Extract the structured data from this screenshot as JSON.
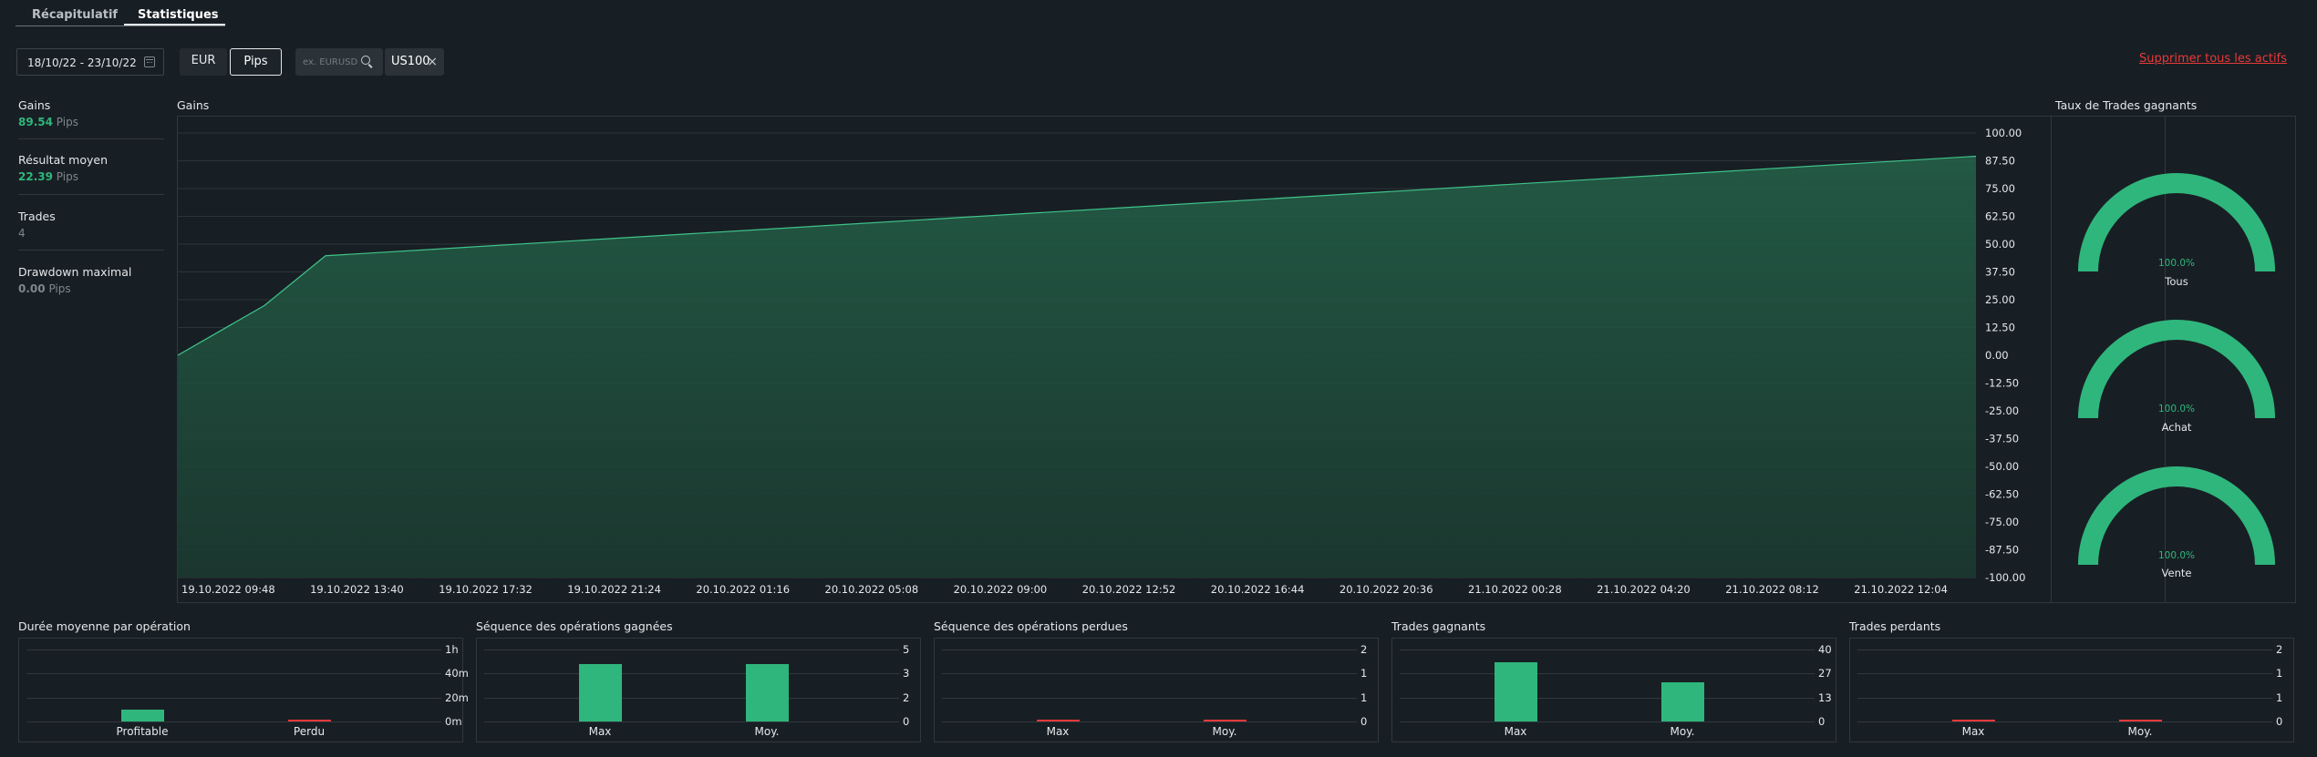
{
  "tabs": [
    {
      "label": "Récapitulatif",
      "active": false
    },
    {
      "label": "Statistiques",
      "active": true
    }
  ],
  "filters": {
    "date_range": "18/10/22 - 23/10/22",
    "currency_option": "EUR",
    "unit_option": "Pips",
    "active_unit": "Pips",
    "search_placeholder": "ex. EURUSD",
    "selected_asset": "US100",
    "delete_all_label": "Supprimer tous les actifs"
  },
  "stats": [
    {
      "label": "Gains",
      "value": "89.54",
      "unit": "Pips",
      "highlight": true
    },
    {
      "label": "Résultat moyen",
      "value": "22.39",
      "unit": "Pips",
      "highlight": true
    },
    {
      "label": "Trades",
      "value": "4",
      "unit": "",
      "highlight": false
    },
    {
      "label": "Drawdown maximal",
      "value": "0.00",
      "unit": "Pips",
      "highlight": false
    }
  ],
  "colors": {
    "accent_green": "#2fb67c",
    "danger_red": "#e8393a",
    "background": "#181f24",
    "panel_border": "#2f383e"
  },
  "chart_data": [
    {
      "type": "area",
      "title": "Gains",
      "x": [
        "19.10.2022 09:48",
        "19.10.2022 11:46",
        "19.10.2022 13:40",
        "21.10.2022 14:00"
      ],
      "series": [
        {
          "values": [
            0.0,
            22.39,
            44.77,
            89.54
          ]
        }
      ],
      "x_tick_labels": [
        "19.10.2022 09:48",
        "19.10.2022 13:40",
        "19.10.2022 17:32",
        "19.10.2022 21:24",
        "20.10.2022 01:16",
        "20.10.2022 05:08",
        "20.10.2022 09:00",
        "20.10.2022 12:52",
        "20.10.2022 16:44",
        "20.10.2022 20:36",
        "21.10.2022 00:28",
        "21.10.2022 04:20",
        "21.10.2022 08:12",
        "21.10.2022 12:04"
      ],
      "y_tick_labels": [
        "100.00",
        "87.50",
        "75.00",
        "62.50",
        "50.00",
        "37.50",
        "25.00",
        "12.50",
        "0.00",
        "-12.50",
        "-25.00",
        "-37.50",
        "-50.00",
        "-62.50",
        "-75.00",
        "-87.50",
        "-100.00"
      ],
      "ylim": [
        -100,
        100
      ],
      "grid": true
    },
    {
      "type": "pie",
      "title": "Taux de Trades gagnants",
      "categories": [
        "Tous",
        "Achat",
        "Vente"
      ],
      "values": [
        100.0,
        100.0,
        100.0
      ],
      "value_labels": [
        "100.0%",
        "100.0%",
        "100.0%"
      ]
    },
    {
      "type": "bar",
      "title": "Durée moyenne par opération",
      "categories": [
        "Profitable",
        "Perdu"
      ],
      "values": [
        10,
        0
      ],
      "value_unit": "minutes",
      "y_tick_labels": [
        "1h",
        "40m",
        "20m",
        "0m"
      ],
      "ylim": [
        0,
        60
      ]
    },
    {
      "type": "bar",
      "title": "Séquence des opérations gagnées",
      "categories": [
        "Max",
        "Moy."
      ],
      "values": [
        4,
        4
      ],
      "y_tick_labels": [
        "5",
        "3",
        "2",
        "0"
      ],
      "ylim": [
        0,
        5
      ]
    },
    {
      "type": "bar",
      "title": "Séquence des opérations perdues",
      "categories": [
        "Max",
        "Moy."
      ],
      "values": [
        0,
        0
      ],
      "y_tick_labels": [
        "2",
        "1",
        "1",
        "0"
      ],
      "ylim": [
        0,
        2
      ]
    },
    {
      "type": "bar",
      "title": "Trades gagnants",
      "categories": [
        "Max",
        "Moy."
      ],
      "values": [
        33,
        22
      ],
      "y_tick_labels": [
        "40",
        "27",
        "13",
        "0"
      ],
      "ylim": [
        0,
        40
      ]
    },
    {
      "type": "bar",
      "title": "Trades perdants",
      "categories": [
        "Max",
        "Moy."
      ],
      "values": [
        0,
        0
      ],
      "y_tick_labels": [
        "2",
        "1",
        "1",
        "0"
      ],
      "ylim": [
        0,
        2
      ]
    }
  ]
}
